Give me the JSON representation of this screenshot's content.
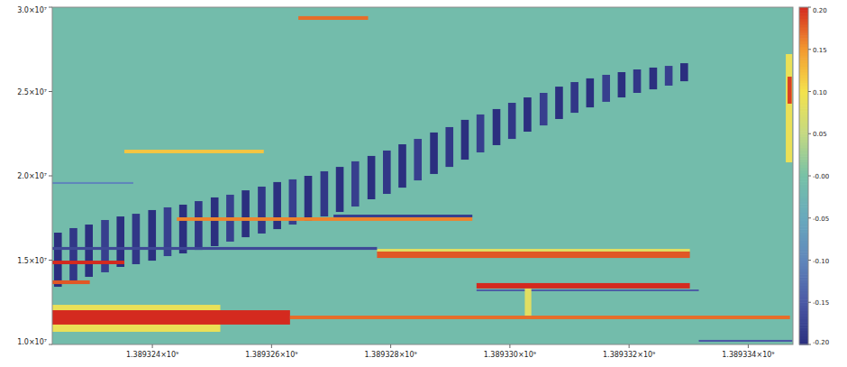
{
  "chart_data": {
    "type": "heatmap",
    "xlim": [
      1389322320,
      1389334750
    ],
    "ylim": [
      10000000,
      30000000
    ],
    "xticks": [
      {
        "value": 1389324000,
        "label": "1.389324×10⁹"
      },
      {
        "value": 1389326000,
        "label": "1.389326×10⁹"
      },
      {
        "value": 1389328000,
        "label": "1.389328×10⁹"
      },
      {
        "value": 1389330000,
        "label": "1.389330×10⁹"
      },
      {
        "value": 1389332000,
        "label": "1.389332×10⁹"
      },
      {
        "value": 1389334000,
        "label": "1.389334×10⁹"
      }
    ],
    "yticks": [
      {
        "value": 10000000,
        "label": "1.0×10⁷"
      },
      {
        "value": 15000000,
        "label": "1.5×10⁷"
      },
      {
        "value": 20000000,
        "label": "2.0×10⁷"
      },
      {
        "value": 25000000,
        "label": "2.5×10⁷"
      },
      {
        "value": 30000000,
        "label": "3.0×10⁷"
      }
    ],
    "grid": false,
    "colorbar_lim": [
      -0.2,
      0.2
    ],
    "colorbar_ticks": [
      {
        "value": 0.2,
        "label": "0.20"
      },
      {
        "value": 0.15,
        "label": "0.15"
      },
      {
        "value": 0.1,
        "label": "0.10"
      },
      {
        "value": 0.05,
        "label": "0.05"
      },
      {
        "value": 0,
        "label": "-0.00"
      },
      {
        "value": -0.05,
        "label": "-0.05"
      },
      {
        "value": -0.1,
        "label": "-0.10"
      },
      {
        "value": -0.15,
        "label": "-0.15"
      },
      {
        "value": -0.2,
        "label": "-0.20"
      }
    ],
    "cells": [
      [
        1389322320,
        1389334750,
        10000000,
        30000000,
        -0.01
      ],
      [
        1389322320,
        1389325140,
        10750000,
        12350000,
        0.09
      ],
      [
        1389322350,
        1389322480,
        13420000,
        16630000,
        -0.2
      ],
      [
        1389322610,
        1389322740,
        13690000,
        16900000,
        -0.19
      ],
      [
        1389322870,
        1389323000,
        14010000,
        17110000,
        -0.2
      ],
      [
        1389323140,
        1389323270,
        14280000,
        17380000,
        -0.18
      ],
      [
        1389323400,
        1389323530,
        14600000,
        17590000,
        -0.2
      ],
      [
        1389323660,
        1389323790,
        14760000,
        17750000,
        -0.19
      ],
      [
        1389323930,
        1389324060,
        14970000,
        17970000,
        -0.2
      ],
      [
        1389324190,
        1389324320,
        15240000,
        18130000,
        -0.18
      ],
      [
        1389324450,
        1389324580,
        15400000,
        18290000,
        -0.2
      ],
      [
        1389324710,
        1389324840,
        15610000,
        18500000,
        -0.19
      ],
      [
        1389324980,
        1389325110,
        15830000,
        18720000,
        -0.2
      ],
      [
        1389325240,
        1389325370,
        16100000,
        18880000,
        -0.18
      ],
      [
        1389325500,
        1389325630,
        16360000,
        19140000,
        -0.2
      ],
      [
        1389325770,
        1389325900,
        16580000,
        19360000,
        -0.19
      ],
      [
        1389326030,
        1389326160,
        16840000,
        19630000,
        -0.2
      ],
      [
        1389326290,
        1389326420,
        17110000,
        19790000,
        -0.18
      ],
      [
        1389326550,
        1389326680,
        17330000,
        20000000,
        -0.2
      ],
      [
        1389326820,
        1389326950,
        17590000,
        20270000,
        -0.19
      ],
      [
        1389327080,
        1389327210,
        17860000,
        20530000,
        -0.2
      ],
      [
        1389327340,
        1389327470,
        18180000,
        20860000,
        -0.18
      ],
      [
        1389327610,
        1389327740,
        18610000,
        21180000,
        -0.2
      ],
      [
        1389327870,
        1389328000,
        18930000,
        21500000,
        -0.19
      ],
      [
        1389328130,
        1389328260,
        19300000,
        21870000,
        -0.2
      ],
      [
        1389328390,
        1389328520,
        19730000,
        22190000,
        -0.18
      ],
      [
        1389328660,
        1389328790,
        20110000,
        22570000,
        -0.2
      ],
      [
        1389328920,
        1389329050,
        20530000,
        22890000,
        -0.19
      ],
      [
        1389329180,
        1389329310,
        20960000,
        23320000,
        -0.2
      ],
      [
        1389329440,
        1389329570,
        21390000,
        23640000,
        -0.18
      ],
      [
        1389329710,
        1389329840,
        21820000,
        23960000,
        -0.2
      ],
      [
        1389329970,
        1389330100,
        22190000,
        24330000,
        -0.19
      ],
      [
        1389330230,
        1389330360,
        22620000,
        24650000,
        -0.2
      ],
      [
        1389330500,
        1389330630,
        22990000,
        24920000,
        -0.18
      ],
      [
        1389330760,
        1389330890,
        23370000,
        25290000,
        -0.2
      ],
      [
        1389331020,
        1389331150,
        23740000,
        25560000,
        -0.19
      ],
      [
        1389331280,
        1389331410,
        24060000,
        25780000,
        -0.2
      ],
      [
        1389331550,
        1389331680,
        24390000,
        25990000,
        -0.18
      ],
      [
        1389331810,
        1389331940,
        24650000,
        26150000,
        -0.2
      ],
      [
        1389332070,
        1389332200,
        24920000,
        26310000,
        -0.19
      ],
      [
        1389332340,
        1389332470,
        25130000,
        26420000,
        -0.2
      ],
      [
        1389332600,
        1389332730,
        25350000,
        26520000,
        -0.18
      ],
      [
        1389332860,
        1389332990,
        25610000,
        26680000,
        -0.2
      ],
      [
        1389322320,
        1389326310,
        11180000,
        12030000,
        0.2
      ],
      [
        1389326310,
        1389334700,
        11500000,
        11710000,
        0.17
      ],
      [
        1389322320,
        1389323530,
        14760000,
        14970000,
        0.2
      ],
      [
        1389327770,
        1389333020,
        15510000,
        15670000,
        0.08
      ],
      [
        1389327770,
        1389333020,
        15130000,
        15510000,
        0.18
      ],
      [
        1389329440,
        1389333020,
        13320000,
        13640000,
        0.2
      ],
      [
        1389329440,
        1389333170,
        13160000,
        13260000,
        -0.15
      ],
      [
        1389322320,
        1389322950,
        13580000,
        13800000,
        0.18
      ],
      [
        1389324410,
        1389329370,
        17330000,
        17540000,
        0.16
      ],
      [
        1389327040,
        1389329370,
        17540000,
        17700000,
        -0.18
      ],
      [
        1389322320,
        1389327770,
        15610000,
        15780000,
        -0.17
      ],
      [
        1389326450,
        1389327620,
        29250000,
        29470000,
        0.17
      ],
      [
        1389323530,
        1389325870,
        21340000,
        21550000,
        0.12
      ],
      [
        1389334630,
        1389334740,
        20800000,
        27220000,
        0.09
      ],
      [
        1389334660,
        1389334730,
        24280000,
        25880000,
        0.19
      ],
      [
        1389333170,
        1389334740,
        10160000,
        10270000,
        -0.15
      ],
      [
        1389322320,
        1389323680,
        19520000,
        19630000,
        -0.1
      ],
      [
        1389330250,
        1389330360,
        11710000,
        13320000,
        0.08
      ]
    ]
  }
}
